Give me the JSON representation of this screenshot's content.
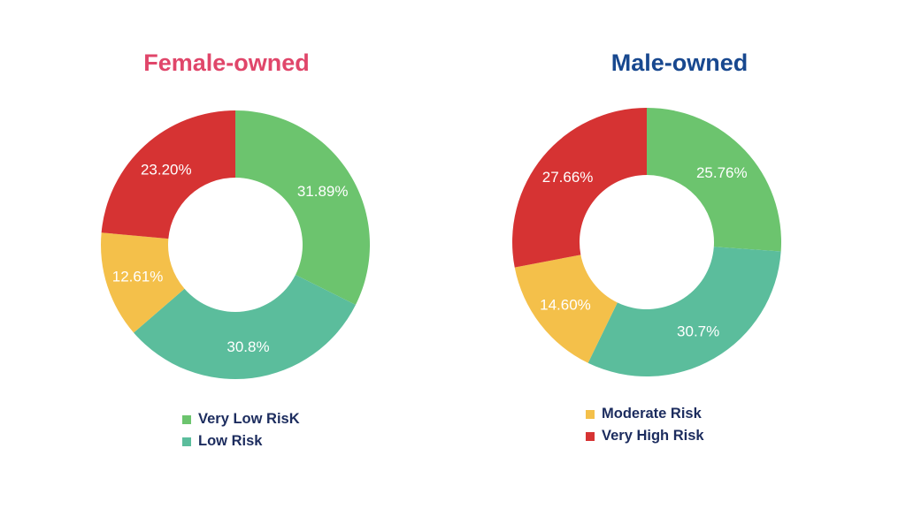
{
  "colors": {
    "very_low": "#6cc46e",
    "low": "#5bbd9c",
    "moderate": "#f4c04a",
    "very_high": "#d63333",
    "female_title": "#e0466a",
    "male_title": "#18488f"
  },
  "legend_left": [
    {
      "label": "Very Low RisK",
      "color": "#6cc46e"
    },
    {
      "label": "Low Risk",
      "color": "#5bbd9c"
    }
  ],
  "legend_right": [
    {
      "label": "Moderate Risk",
      "color": "#f4c04a"
    },
    {
      "label": "Very High Risk",
      "color": "#d63333"
    }
  ],
  "chart_data": [
    {
      "type": "pie",
      "title": "Female-owned",
      "categories": [
        "Very Low Risk",
        "Low Risk",
        "Moderate Risk",
        "Very High Risk"
      ],
      "values": [
        31.89,
        30.8,
        12.61,
        23.2
      ],
      "labels": [
        "31.89%",
        "30.8%",
        "12.61%",
        "23.20%"
      ],
      "colors": [
        "#6cc46e",
        "#5bbd9c",
        "#f4c04a",
        "#d63333"
      ]
    },
    {
      "type": "pie",
      "title": "Male-owned",
      "categories": [
        "Very Low Risk",
        "Low Risk",
        "Moderate Risk",
        "Very High Risk"
      ],
      "values": [
        25.76,
        30.7,
        14.6,
        27.66
      ],
      "labels": [
        "25.76%",
        "30.7%",
        "14.60%",
        "27.66%"
      ],
      "colors": [
        "#6cc46e",
        "#5bbd9c",
        "#f4c04a",
        "#d63333"
      ]
    }
  ]
}
